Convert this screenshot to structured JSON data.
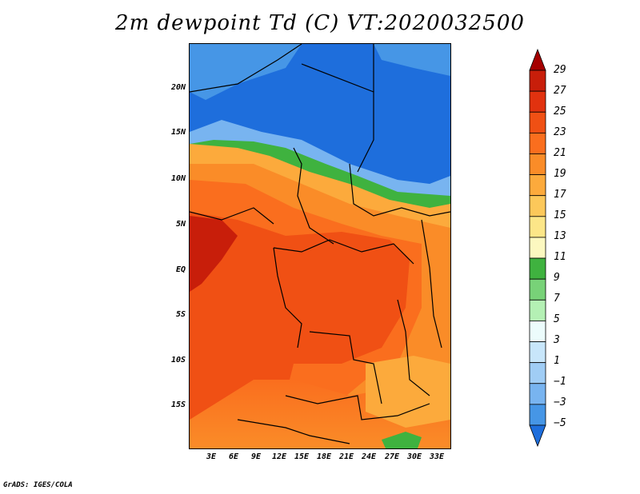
{
  "title": "2m dewpoint Td (C) VT:2020032500",
  "credit": "GrADS: IGES/COLA",
  "map": {
    "lat_labels": [
      "20N",
      "15N",
      "10N",
      "5N",
      "EQ",
      "5S",
      "10S",
      "15S"
    ],
    "lon_labels": [
      "3E",
      "6E",
      "9E",
      "12E",
      "15E",
      "18E",
      "21E",
      "24E",
      "27E",
      "30E",
      "33E"
    ],
    "lat_range": [
      -19.5,
      24.5
    ],
    "lon_range": [
      0,
      34.5
    ]
  },
  "colorbar": {
    "labels": [
      "29",
      "27",
      "25",
      "23",
      "21",
      "19",
      "17",
      "15",
      "13",
      "11",
      "9",
      "7",
      "5",
      "3",
      "1",
      "−1",
      "−3",
      "−5"
    ],
    "colors": [
      "#a50000",
      "#c81e0a",
      "#e1320f",
      "#f05014",
      "#fa6e1e",
      "#fa8c28",
      "#fcaa3c",
      "#fcc85a",
      "#fce688",
      "#fcf8c0",
      "#3fb23f",
      "#78d278",
      "#b4f0b4",
      "#ecfcfc",
      "#c8e6fa",
      "#a0cdf5",
      "#78b4f0",
      "#4696e6",
      "#1e6edc"
    ]
  }
}
